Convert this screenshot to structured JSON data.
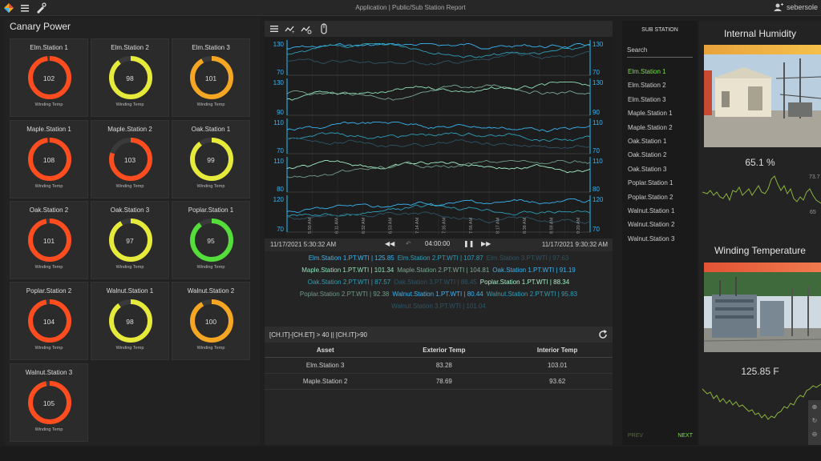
{
  "topbar": {
    "title": "Application | Public/Sub Station Report",
    "user": "sebersole"
  },
  "left": {
    "title": "Canary Power",
    "gauges": [
      {
        "name": "Elm.Station 1",
        "value": "102",
        "sub": "Winding Temp",
        "color": "#ff4d1f",
        "fill": 0.98
      },
      {
        "name": "Elm.Station 2",
        "value": "98",
        "sub": "Winding Temp",
        "color": "#e6ea3a",
        "fill": 0.9
      },
      {
        "name": "Elm.Station 3",
        "value": "101",
        "sub": "Winding Temp",
        "color": "#f5a623",
        "fill": 0.92
      },
      {
        "name": "Maple.Station 1",
        "value": "108",
        "sub": "Winding Temp",
        "color": "#ff4d1f",
        "fill": 0.98
      },
      {
        "name": "Maple.Station 2",
        "value": "103",
        "sub": "Winding Temp",
        "color": "#ff4d1f",
        "fill": 0.8
      },
      {
        "name": "Oak.Station 1",
        "value": "99",
        "sub": "Winding Temp",
        "color": "#e6ea3a",
        "fill": 0.9
      },
      {
        "name": "Oak.Station 2",
        "value": "101",
        "sub": "Winding Temp",
        "color": "#ff4d1f",
        "fill": 0.97
      },
      {
        "name": "Oak.Station 3",
        "value": "97",
        "sub": "Winding Temp",
        "color": "#e6ea3a",
        "fill": 0.92
      },
      {
        "name": "Poplar.Station 1",
        "value": "95",
        "sub": "Winding Temp",
        "color": "#55dd3c",
        "fill": 0.9
      },
      {
        "name": "Poplar.Station 2",
        "value": "104",
        "sub": "Winding Temp",
        "color": "#ff4d1f",
        "fill": 0.97
      },
      {
        "name": "Walnut.Station 1",
        "value": "98",
        "sub": "Winding Temp",
        "color": "#e6ea3a",
        "fill": 0.9
      },
      {
        "name": "Walnut.Station 2",
        "value": "100",
        "sub": "Winding Temp",
        "color": "#f5a623",
        "fill": 0.92
      },
      {
        "name": "Walnut.Station 3",
        "value": "105",
        "sub": "Winding Temp",
        "color": "#ff4d1f",
        "fill": 0.97
      }
    ]
  },
  "chart_data": {
    "type": "line",
    "panels": [
      {
        "ylim": [
          70,
          130
        ],
        "ticks": [
          "130",
          "70"
        ]
      },
      {
        "ylim": [
          90,
          130
        ],
        "ticks": [
          "130",
          "90"
        ]
      },
      {
        "ylim": [
          70,
          110
        ],
        "ticks": [
          "110",
          "70"
        ]
      },
      {
        "ylim": [
          80,
          110
        ],
        "ticks": [
          "110",
          "80"
        ]
      },
      {
        "ylim": [
          70,
          120
        ],
        "ticks": [
          "120",
          "70"
        ]
      }
    ],
    "x_ticks": [
      "5:50 AM",
      "6:11 AM",
      "6:32 AM",
      "6:53 AM",
      "7:14 AM",
      "7:35 AM",
      "7:56 AM",
      "8:17 AM",
      "8:38 AM",
      "8:59 AM",
      "9:20 AM"
    ]
  },
  "timebar": {
    "start": "11/17/2021  5:30:32 AM",
    "end": "11/17/2021  9:30:32 AM",
    "duration": "04:00:00"
  },
  "legend": {
    "rows": [
      [
        {
          "t": "Elm.Station 1.PT.WTI | 125.85",
          "c": "#3ab4f2"
        },
        {
          "t": "Elm.Station 2.PT.WTI | 107.87",
          "c": "#2e9fb8"
        },
        {
          "t": "Elm.Station 3.PT.WTI | 97.63",
          "c": "#2d5566"
        }
      ],
      [
        {
          "t": "Maple.Station 1.PT.WTI | 101.34",
          "c": "#8fe0b8"
        },
        {
          "t": "Maple.Station 2.PT.WTI | 104.81",
          "c": "#7aa892"
        },
        {
          "t": "Oak.Station 1.PT.WTI | 91.19",
          "c": "#3ab4f2"
        }
      ],
      [
        {
          "t": "Oak.Station 2.PT.WTI | 87.57",
          "c": "#2e9fb8"
        },
        {
          "t": "Oak.Station 3.PT.WTI | 88.45",
          "c": "#2d5566"
        },
        {
          "t": "Poplar.Station 1.PT.WTI | 88.34",
          "c": "#a5f0c8"
        }
      ],
      [
        {
          "t": "Poplar.Station 2.PT.WTI | 92.38",
          "c": "#6f9c86"
        },
        {
          "t": "Walnut.Station 1.PT.WTI | 80.44",
          "c": "#3ab4f2"
        },
        {
          "t": "Walnut.Station 2.PT.WTI | 95.83",
          "c": "#2e9fb8"
        }
      ],
      [
        {
          "t": "Walnut.Station 3.PT.WTI | 101.04",
          "c": "#2d5566"
        }
      ]
    ]
  },
  "query": {
    "text": "[CH.IT]-[CH.ET] > 40 || [CH.IT]>90",
    "headers": [
      "Asset",
      "Exterior Temp",
      "Interior Temp"
    ],
    "rows": [
      [
        "Elm.Station 3",
        "83.28",
        "103.01"
      ],
      [
        "Maple.Station 2",
        "78.69",
        "93.62"
      ]
    ]
  },
  "stations": {
    "title": "SUB STATION",
    "search": "Search",
    "items": [
      "Elm.Station 1",
      "Elm.Station 2",
      "Elm.Station 3",
      "Maple.Station 1",
      "Maple.Station 2",
      "Oak.Station 1",
      "Oak.Station 2",
      "Oak.Station 3",
      "Poplar.Station 1",
      "Poplar.Station 2",
      "Walnut.Station 1",
      "Walnut.Station 2",
      "Walnut.Station 3"
    ],
    "prev": "PREV",
    "next": "NEXT"
  },
  "right": {
    "humidity": {
      "title": "Internal Humidity",
      "value": "65.1 %",
      "tick_hi": "73.7",
      "tick_lo": "65"
    },
    "winding": {
      "title": "Winding Temperature",
      "value": "125.85 F"
    }
  }
}
